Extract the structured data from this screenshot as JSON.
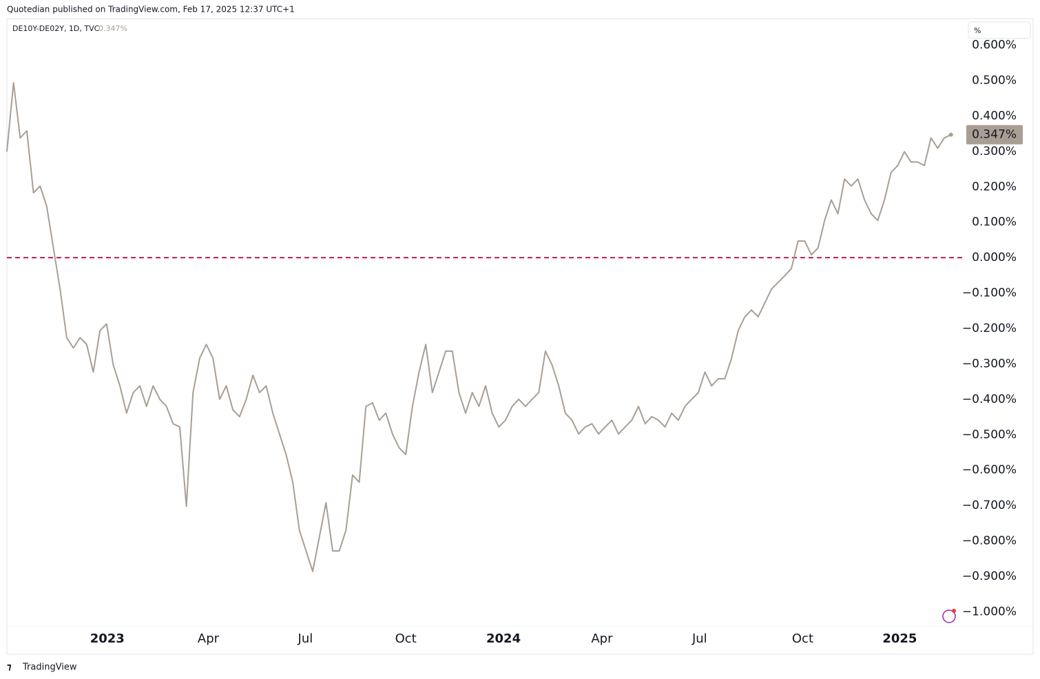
{
  "header": {
    "publisher": "Quotedian published on TradingView.com, Feb 17, 2025 12:37 UTC+1",
    "logo_text": "TradingView",
    "scale_mode": "%"
  },
  "chart_data": {
    "type": "line",
    "title": "DE10Y-DE02Y, 1D, TVC",
    "last_value_label": "0.347%",
    "series": [
      {
        "name": "DE10Y-DE02Y",
        "color": "#a89e93",
        "values": [
          0.299,
          0.494,
          0.338,
          0.358,
          0.183,
          0.202,
          0.144,
          0.027,
          -0.089,
          -0.226,
          -0.255,
          -0.226,
          -0.245,
          -0.323,
          -0.206,
          -0.187,
          -0.303,
          -0.362,
          -0.439,
          -0.381,
          -0.362,
          -0.42,
          -0.362,
          -0.4,
          -0.42,
          -0.469,
          -0.478,
          -0.702,
          -0.381,
          -0.284,
          -0.245,
          -0.284,
          -0.4,
          -0.362,
          -0.43,
          -0.449,
          -0.4,
          -0.332,
          -0.381,
          -0.362,
          -0.439,
          -0.498,
          -0.556,
          -0.634,
          -0.77,
          -0.828,
          -0.886,
          -0.789,
          -0.692,
          -0.828,
          -0.828,
          -0.77,
          -0.614,
          -0.634,
          -0.42,
          -0.41,
          -0.459,
          -0.439,
          -0.498,
          -0.537,
          -0.556,
          -0.42,
          -0.323,
          -0.245,
          -0.381,
          -0.323,
          -0.264,
          -0.264,
          -0.381,
          -0.439,
          -0.381,
          -0.42,
          -0.362,
          -0.439,
          -0.478,
          -0.459,
          -0.42,
          -0.4,
          -0.42,
          -0.4,
          -0.381,
          -0.264,
          -0.303,
          -0.362,
          -0.439,
          -0.459,
          -0.498,
          -0.478,
          -0.469,
          -0.498,
          -0.478,
          -0.459,
          -0.498,
          -0.478,
          -0.459,
          -0.42,
          -0.469,
          -0.449,
          -0.459,
          -0.478,
          -0.439,
          -0.459,
          -0.42,
          -0.4,
          -0.381,
          -0.323,
          -0.362,
          -0.342,
          -0.342,
          -0.284,
          -0.206,
          -0.167,
          -0.148,
          -0.167,
          -0.128,
          -0.089,
          -0.07,
          -0.051,
          -0.031,
          0.047,
          0.047,
          0.008,
          0.027,
          0.105,
          0.163,
          0.124,
          0.222,
          0.202,
          0.222,
          0.163,
          0.124,
          0.105,
          0.163,
          0.241,
          0.26,
          0.299,
          0.27,
          0.27,
          0.26,
          0.338,
          0.309,
          0.338,
          0.347
        ]
      }
    ],
    "hline": {
      "value": 0,
      "color": "#c2185b",
      "style": "dashed"
    },
    "xlim": [
      0,
      144
    ],
    "xticks": [
      {
        "value": 15.1,
        "label": "2023"
      },
      {
        "value": 30.3,
        "label": "Apr"
      },
      {
        "value": 44.9,
        "label": "Jul"
      },
      {
        "value": 60.0,
        "label": "Oct"
      },
      {
        "value": 74.7,
        "label": "2024"
      },
      {
        "value": 89.5,
        "label": "Apr"
      },
      {
        "value": 104.2,
        "label": "Jul"
      },
      {
        "value": 119.7,
        "label": "Oct"
      },
      {
        "value": 134.3,
        "label": "2025"
      }
    ],
    "ylim": [
      -1.042,
      0.673
    ],
    "yticks": [
      {
        "value": 0.6,
        "label": "0.600%"
      },
      {
        "value": 0.5,
        "label": "0.500%"
      },
      {
        "value": 0.4,
        "label": "0.400%"
      },
      {
        "value": 0.3,
        "label": "0.300%"
      },
      {
        "value": 0.2,
        "label": "0.200%"
      },
      {
        "value": 0.1,
        "label": "0.100%"
      },
      {
        "value": 0,
        "label": "0.000%"
      },
      {
        "value": -0.1,
        "label": "−0.100%"
      },
      {
        "value": -0.2,
        "label": "−0.200%"
      },
      {
        "value": -0.3,
        "label": "−0.300%"
      },
      {
        "value": -0.4,
        "label": "−0.400%"
      },
      {
        "value": -0.5,
        "label": "−0.500%"
      },
      {
        "value": -0.6,
        "label": "−0.600%"
      },
      {
        "value": -0.7,
        "label": "−0.700%"
      },
      {
        "value": -0.8,
        "label": "−0.800%"
      },
      {
        "value": -0.9,
        "label": "−0.900%"
      },
      {
        "value": -1.0,
        "label": "−1.000%"
      }
    ],
    "grid": false
  }
}
